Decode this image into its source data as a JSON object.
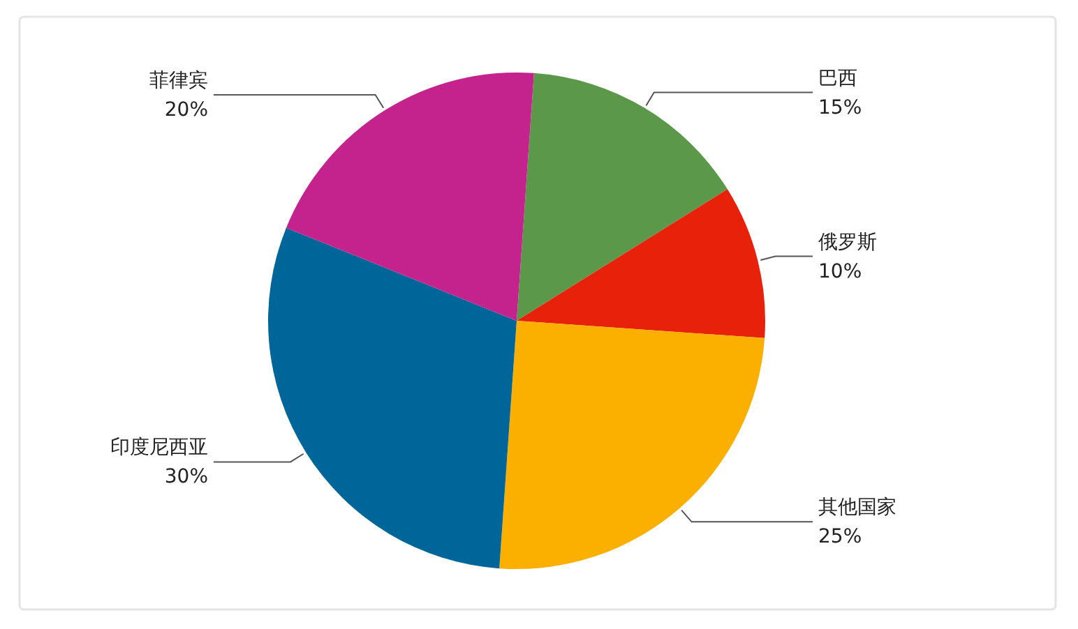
{
  "chart_data": {
    "type": "pie",
    "categories": [
      "巴西",
      "俄罗斯",
      "其他国家",
      "印度尼西亚",
      "菲律宾"
    ],
    "values": [
      15,
      10,
      25,
      30,
      20
    ],
    "colors": [
      "#5b984a",
      "#e8220a",
      "#fbb000",
      "#006699",
      "#c4228c"
    ],
    "value_labels": [
      "15%",
      "10%",
      "25%",
      "30%",
      "20%"
    ]
  }
}
